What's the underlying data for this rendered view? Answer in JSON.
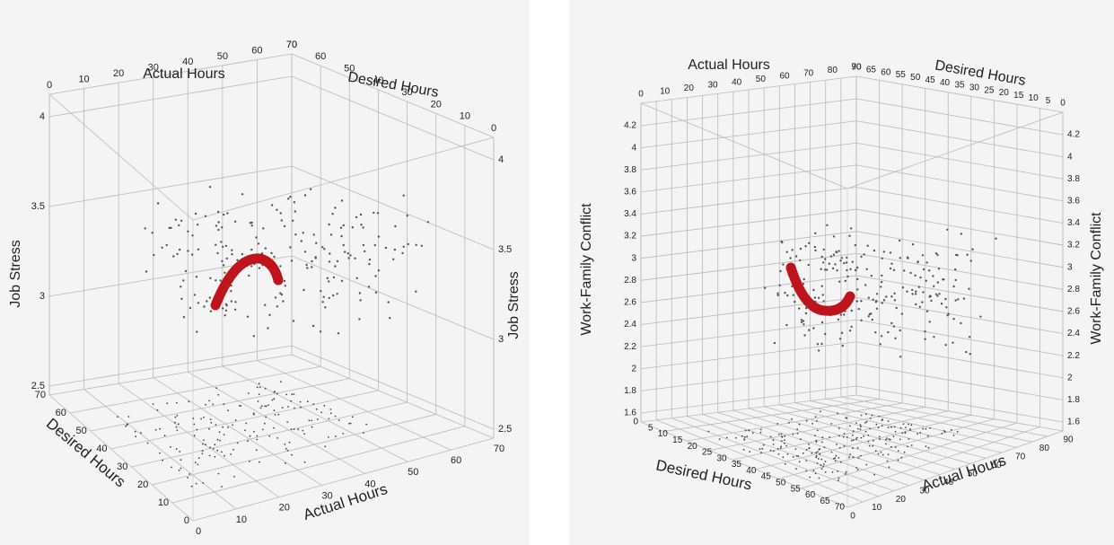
{
  "chart_data": [
    {
      "type": "scatter",
      "axes": {
        "front_x": {
          "label": "Actual Hours",
          "ticks": [
            "0",
            "10",
            "20",
            "30",
            "40",
            "50",
            "60",
            "70"
          ]
        },
        "front_y": {
          "label": "Desired Hours",
          "ticks": [
            "0",
            "10",
            "20",
            "30",
            "40",
            "50",
            "60",
            "70"
          ]
        },
        "top_x": {
          "label": "Actual Hours",
          "ticks": [
            "0",
            "10",
            "20",
            "30",
            "40",
            "50",
            "60",
            "70"
          ]
        },
        "top_y": {
          "label": "Desired Hours",
          "ticks": [
            "70",
            "60",
            "50",
            "40",
            "30",
            "20",
            "10",
            "0"
          ]
        },
        "z_left": {
          "label": "Job Stress",
          "ticks": [
            "2.5",
            "3",
            "3.5",
            "4"
          ]
        },
        "z_right": {
          "label": "Job Stress",
          "ticks": [
            "2.5",
            "3",
            "3.5",
            "4"
          ]
        }
      },
      "zlim": [
        2.5,
        4.1
      ],
      "grid": true,
      "highlight_color": "#c0141c",
      "point_color": "#555555"
    },
    {
      "type": "scatter",
      "axes": {
        "front_x": {
          "label": "Actual Hours",
          "ticks": [
            "0",
            "10",
            "20",
            "30",
            "40",
            "50",
            "60",
            "70",
            "80",
            "90"
          ]
        },
        "front_y": {
          "label": "Desired Hours",
          "ticks": [
            "70",
            "65",
            "60",
            "55",
            "50",
            "45",
            "40",
            "35",
            "30",
            "25",
            "20",
            "15",
            "10",
            "5",
            "0"
          ]
        },
        "top_x": {
          "label": "Actual Hours",
          "ticks": [
            "0",
            "10",
            "20",
            "30",
            "40",
            "50",
            "60",
            "70",
            "80",
            "90"
          ]
        },
        "top_y": {
          "label": "Desired Hours",
          "ticks": [
            "70",
            "65",
            "60",
            "55",
            "50",
            "45",
            "40",
            "35",
            "30",
            "25",
            "20",
            "15",
            "10",
            "5",
            "0"
          ]
        },
        "z_left": {
          "label": "Work-Family Conflict",
          "ticks": [
            "1.6",
            "1.8",
            "2",
            "2.2",
            "2.4",
            "2.6",
            "2.8",
            "3",
            "3.2",
            "3.4",
            "3.6",
            "3.8",
            "4",
            "4.2"
          ]
        },
        "z_right": {
          "label": "Work-Family Conflict",
          "ticks": [
            "1.6",
            "1.8",
            "2",
            "2.2",
            "2.4",
            "2.6",
            "2.8",
            "3",
            "3.2",
            "3.4",
            "3.6",
            "3.8",
            "4",
            "4.2"
          ]
        }
      },
      "zlim": [
        1.5,
        4.2
      ],
      "grid": true,
      "highlight_color": "#c0141c",
      "point_color": "#555555"
    }
  ]
}
